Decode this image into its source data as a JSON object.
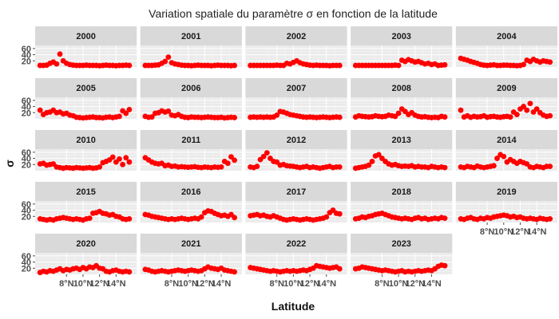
{
  "chart_data": {
    "type": "scatter",
    "title": "Variation spatiale du paramètre σ en fonction de la latitude",
    "xlabel": "Latitude",
    "ylabel": "σ",
    "y_ticks": [
      "20",
      "40",
      "60"
    ],
    "y_tick_values": [
      20,
      40,
      60
    ],
    "ylim": [
      0,
      70
    ],
    "x_ticks": [
      "8°N",
      "10°N",
      "12°N",
      "14°N"
    ],
    "x_tick_values": [
      8,
      10,
      12,
      14
    ],
    "xlim": [
      4.2,
      16.5
    ],
    "facet_rows": 5,
    "facet_cols": 5,
    "point_color": "#ff0000",
    "panel_background": "#ebebeb",
    "strip_background": "#d9d9d9",
    "grid": true,
    "x": [
      4.8,
      5.2,
      5.6,
      6.0,
      6.4,
      6.8,
      7.2,
      7.6,
      8.0,
      8.4,
      8.8,
      9.2,
      9.6,
      10.0,
      10.4,
      10.8,
      11.2,
      11.6,
      12.0,
      12.4,
      12.8,
      13.2,
      13.6,
      14.0,
      14.4,
      14.8,
      15.2,
      15.6
    ],
    "panels": [
      {
        "label": "2000",
        "values": [
          5,
          5,
          6,
          12,
          16,
          10,
          42,
          20,
          12,
          8,
          6,
          5,
          5,
          5,
          6,
          5,
          5,
          5,
          4,
          5,
          6,
          5,
          5,
          4,
          5,
          5,
          6,
          5
        ]
      },
      {
        "label": "2001",
        "values": [
          5,
          5,
          5,
          6,
          7,
          12,
          18,
          32,
          14,
          10,
          8,
          6,
          5,
          5,
          4,
          5,
          6,
          5,
          5,
          5,
          4,
          5,
          6,
          5,
          5,
          5,
          4,
          5
        ]
      },
      {
        "label": "2002",
        "values": [
          5,
          5,
          5,
          5,
          5,
          5,
          5,
          5,
          6,
          5,
          5,
          12,
          10,
          15,
          20,
          14,
          10,
          8,
          6,
          5,
          6,
          5,
          5,
          5,
          4,
          5,
          5,
          5
        ]
      },
      {
        "label": "2003",
        "values": [
          5,
          5,
          5,
          5,
          5,
          5,
          5,
          5,
          5,
          5,
          5,
          5,
          6,
          5,
          22,
          18,
          24,
          20,
          16,
          18,
          14,
          10,
          12,
          8,
          10,
          5,
          6,
          7
        ]
      },
      {
        "label": "2004",
        "values": [
          28,
          25,
          22,
          18,
          15,
          12,
          8,
          6,
          5,
          6,
          7,
          5,
          5,
          6,
          6,
          5,
          5,
          4,
          5,
          8,
          22,
          18,
          25,
          20,
          16,
          20,
          18,
          16
        ]
      },
      {
        "label": "2005",
        "values": [
          28,
          14,
          20,
          22,
          28,
          20,
          22,
          16,
          18,
          12,
          10,
          5,
          4,
          3,
          4,
          5,
          6,
          4,
          4,
          3,
          5,
          6,
          4,
          6,
          8,
          26,
          18,
          30
        ]
      },
      {
        "label": "2006",
        "values": [
          8,
          5,
          6,
          18,
          20,
          26,
          22,
          25,
          12,
          10,
          14,
          8,
          5,
          4,
          6,
          5,
          5,
          4,
          5,
          6,
          5,
          4,
          4,
          5,
          3,
          4,
          5,
          4
        ]
      },
      {
        "label": "2007",
        "values": [
          5,
          6,
          5,
          6,
          5,
          6,
          5,
          6,
          12,
          24,
          22,
          18,
          14,
          12,
          10,
          8,
          6,
          5,
          6,
          5,
          4,
          5,
          6,
          5,
          4,
          5,
          6,
          5
        ]
      },
      {
        "label": "2008",
        "values": [
          6,
          10,
          8,
          7,
          6,
          7,
          10,
          8,
          7,
          8,
          12,
          10,
          8,
          18,
          32,
          24,
          14,
          20,
          12,
          8,
          6,
          7,
          5,
          4,
          5,
          4,
          8,
          6
        ]
      },
      {
        "label": "2009",
        "values": [
          28,
          6,
          10,
          5,
          8,
          6,
          7,
          10,
          5,
          7,
          8,
          6,
          5,
          7,
          8,
          6,
          22,
          14,
          32,
          40,
          28,
          50,
          22,
          32,
          20,
          12,
          8,
          10
        ]
      },
      {
        "label": "2010",
        "values": [
          22,
          24,
          18,
          20,
          22,
          12,
          10,
          8,
          10,
          9,
          8,
          10,
          9,
          8,
          9,
          10,
          8,
          9,
          12,
          26,
          30,
          35,
          44,
          28,
          38,
          20,
          42,
          28
        ]
      },
      {
        "label": "2011",
        "values": [
          42,
          35,
          28,
          24,
          22,
          24,
          16,
          18,
          14,
          15,
          12,
          13,
          12,
          11,
          12,
          13,
          11,
          10,
          12,
          11,
          10,
          12,
          11,
          12,
          30,
          24,
          45,
          34
        ]
      },
      {
        "label": "2012",
        "values": [
          12,
          10,
          14,
          36,
          46,
          58,
          40,
          30,
          28,
          18,
          20,
          16,
          15,
          14,
          12,
          10,
          12,
          14,
          10,
          12,
          10,
          8,
          10,
          12,
          14,
          10,
          12,
          12
        ]
      },
      {
        "label": "2013",
        "values": [
          8,
          10,
          12,
          14,
          18,
          30,
          48,
          52,
          40,
          30,
          22,
          18,
          20,
          16,
          14,
          15,
          14,
          16,
          12,
          14,
          12,
          12,
          10,
          14,
          12,
          10,
          12,
          10
        ]
      },
      {
        "label": "2014",
        "values": [
          12,
          10,
          14,
          12,
          10,
          15,
          12,
          10,
          12,
          14,
          16,
          40,
          52,
          46,
          28,
          36,
          30,
          24,
          30,
          26,
          22,
          12,
          10,
          14,
          12,
          10,
          14,
          14
        ]
      },
      {
        "label": "2015",
        "values": [
          12,
          10,
          8,
          10,
          8,
          12,
          14,
          16,
          14,
          12,
          10,
          12,
          10,
          8,
          12,
          14,
          30,
          32,
          36,
          30,
          28,
          24,
          26,
          20,
          18,
          12,
          10,
          12
        ]
      },
      {
        "label": "2016",
        "values": [
          26,
          24,
          20,
          18,
          16,
          14,
          12,
          10,
          12,
          10,
          12,
          14,
          12,
          10,
          12,
          14,
          12,
          18,
          32,
          38,
          36,
          30,
          26,
          22,
          24,
          20,
          26,
          16
        ]
      },
      {
        "label": "2017",
        "values": [
          22,
          24,
          26,
          22,
          24,
          20,
          18,
          22,
          18,
          14,
          10,
          8,
          10,
          12,
          10,
          8,
          10,
          12,
          10,
          8,
          10,
          12,
          14,
          18,
          32,
          40,
          30,
          28
        ]
      },
      {
        "label": "2018",
        "values": [
          12,
          14,
          18,
          16,
          20,
          22,
          26,
          28,
          30,
          26,
          22,
          18,
          16,
          14,
          12,
          14,
          12,
          10,
          14,
          16,
          12,
          14,
          10,
          12,
          14,
          12,
          16,
          14
        ]
      },
      {
        "label": "2019",
        "values": [
          12,
          10,
          14,
          16,
          12,
          10,
          14,
          12,
          16,
          14,
          18,
          20,
          22,
          24,
          22,
          18,
          20,
          16,
          18,
          14,
          12,
          14,
          12,
          10,
          14,
          12,
          10,
          12
        ]
      },
      {
        "label": "2020",
        "values": [
          6,
          10,
          8,
          12,
          10,
          14,
          18,
          12,
          16,
          14,
          18,
          20,
          16,
          22,
          18,
          24,
          22,
          28,
          20,
          18,
          10,
          8,
          12,
          14,
          10,
          8,
          10,
          8
        ]
      },
      {
        "label": "2021",
        "values": [
          16,
          14,
          10,
          8,
          10,
          12,
          10,
          8,
          10,
          12,
          14,
          12,
          10,
          12,
          14,
          12,
          10,
          12,
          18,
          24,
          20,
          18,
          16,
          20,
          14,
          12,
          10,
          8
        ]
      },
      {
        "label": "2022",
        "values": [
          22,
          20,
          18,
          16,
          14,
          12,
          10,
          12,
          10,
          8,
          10,
          12,
          10,
          12,
          10,
          12,
          14,
          12,
          16,
          20,
          28,
          26,
          24,
          22,
          20,
          22,
          24,
          18
        ]
      },
      {
        "label": "2023",
        "values": [
          18,
          20,
          24,
          22,
          20,
          18,
          16,
          14,
          12,
          14,
          12,
          10,
          8,
          10,
          12,
          8,
          10,
          8,
          10,
          12,
          10,
          12,
          14,
          12,
          18,
          26,
          30,
          28
        ]
      }
    ]
  }
}
